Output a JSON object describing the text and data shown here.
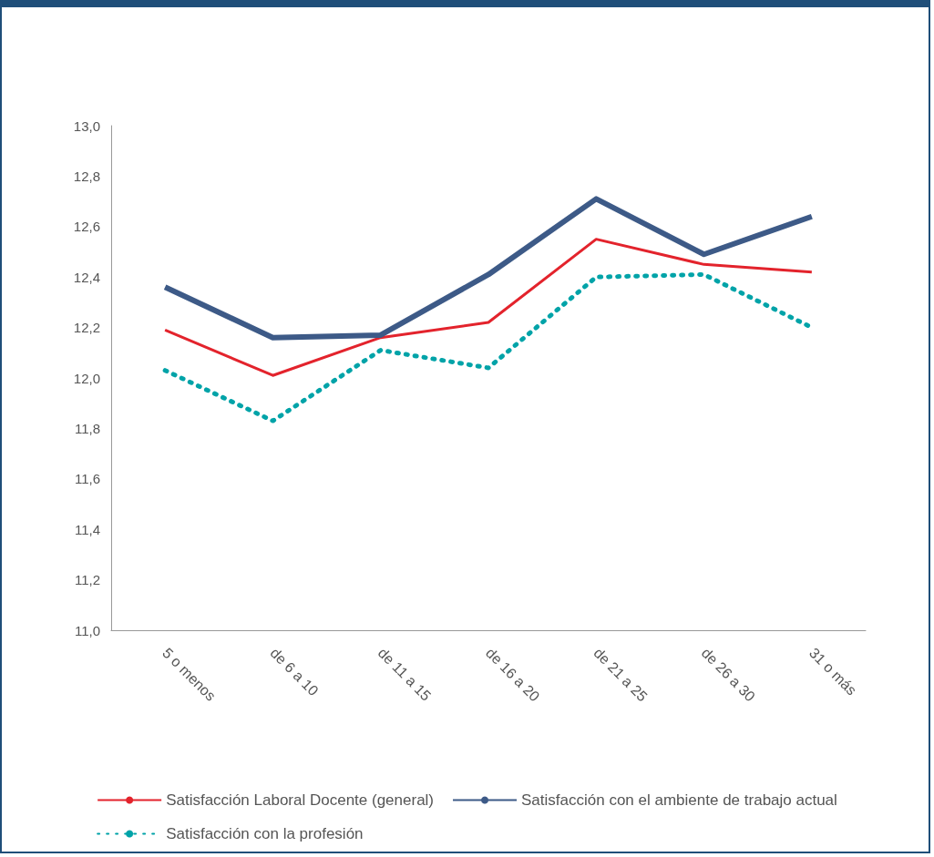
{
  "chart_data": {
    "type": "line",
    "categories": [
      "5 o menos",
      "de 6 a 10",
      "de 11 a 15",
      "de 16 a 20",
      "de 21 a 25",
      "de 26 a 30",
      "31 o más"
    ],
    "series": [
      {
        "name": "Satisfacción Laboral Docente (general)",
        "color": "#e3232c",
        "line_style": "solid",
        "values": [
          12.19,
          12.01,
          12.16,
          12.22,
          12.55,
          12.45,
          12.42
        ]
      },
      {
        "name": "Satisfacción con el ambiente de trabajo actual",
        "color": "#3d5a87",
        "line_style": "solid",
        "values": [
          12.36,
          12.16,
          12.17,
          12.41,
          12.71,
          12.49,
          12.64
        ]
      },
      {
        "name": "Satisfacción con la profesión",
        "color": "#00a3a8",
        "line_style": "dotted",
        "values": [
          12.03,
          11.83,
          12.11,
          12.04,
          12.4,
          12.41,
          12.2
        ]
      }
    ],
    "ylim": [
      11.0,
      13.0
    ],
    "yticks": [
      {
        "value": 11.0,
        "label": "11,0"
      },
      {
        "value": 11.2,
        "label": "11,2"
      },
      {
        "value": 11.4,
        "label": "11,4"
      },
      {
        "value": 11.6,
        "label": "11,6"
      },
      {
        "value": 11.8,
        "label": "11,8"
      },
      {
        "value": 12.0,
        "label": "12,0"
      },
      {
        "value": 12.2,
        "label": "12,2"
      },
      {
        "value": 12.4,
        "label": "12,4"
      },
      {
        "value": 12.6,
        "label": "12,6"
      },
      {
        "value": 12.8,
        "label": "12,8"
      },
      {
        "value": 13.0,
        "label": "13,0"
      }
    ],
    "grid": false,
    "legend": "bottom",
    "marker": "none"
  }
}
